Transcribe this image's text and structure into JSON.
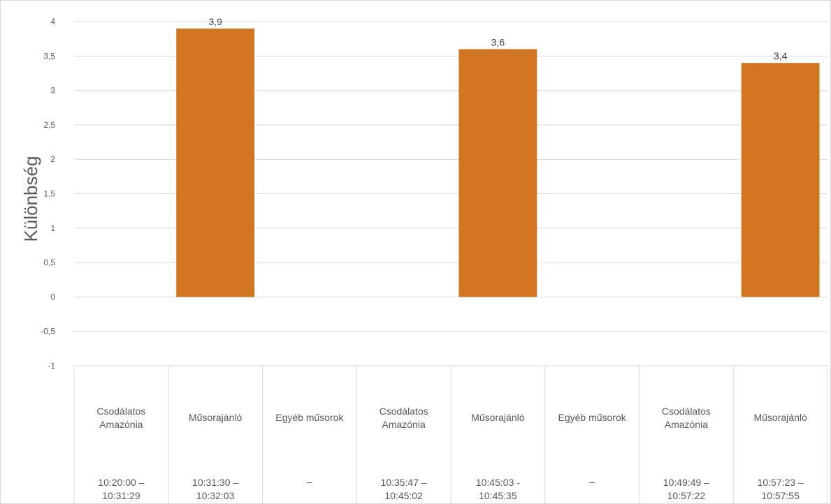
{
  "chart_data": {
    "type": "bar",
    "title": "",
    "xlabel": "",
    "ylabel": "Különbség",
    "ylim": [
      -1,
      4
    ],
    "y_ticks": [
      "4",
      "3,5",
      "3",
      "2,5",
      "2",
      "1,5",
      "1",
      "0,5",
      "0",
      "-0,5",
      "-1"
    ],
    "grid": true,
    "legend": "none",
    "bar_color": "#D27520",
    "categories": [
      {
        "name_lines": [
          "Csodálatos",
          "Amazónia"
        ],
        "time_lines": [
          "10:20:00 –",
          "10:31:29"
        ]
      },
      {
        "name_lines": [
          "Műsorajánló"
        ],
        "time_lines": [
          "10:31:30 –",
          "10:32:03"
        ]
      },
      {
        "name_lines": [
          "Egyéb műsorok"
        ],
        "time_lines": [
          "–"
        ]
      },
      {
        "name_lines": [
          "Csodálatos",
          "Amazónia"
        ],
        "time_lines": [
          "10:35:47 –",
          "10:45:02"
        ]
      },
      {
        "name_lines": [
          "Műsorajánló"
        ],
        "time_lines": [
          "10:45:03 -",
          "10:45:35"
        ]
      },
      {
        "name_lines": [
          "Egyéb műsorok"
        ],
        "time_lines": [
          "–"
        ]
      },
      {
        "name_lines": [
          "Csodálatos",
          "Amazónia"
        ],
        "time_lines": [
          "10:49:49 –",
          "10:57:22"
        ]
      },
      {
        "name_lines": [
          "Műsorajánló"
        ],
        "time_lines": [
          "10:57:23 –",
          "10:57:55"
        ]
      }
    ],
    "values": [
      null,
      3.9,
      null,
      null,
      3.6,
      null,
      null,
      3.4
    ],
    "data_labels": [
      "",
      "3,9",
      "",
      "",
      "3,6",
      "",
      "",
      "3,4"
    ]
  }
}
